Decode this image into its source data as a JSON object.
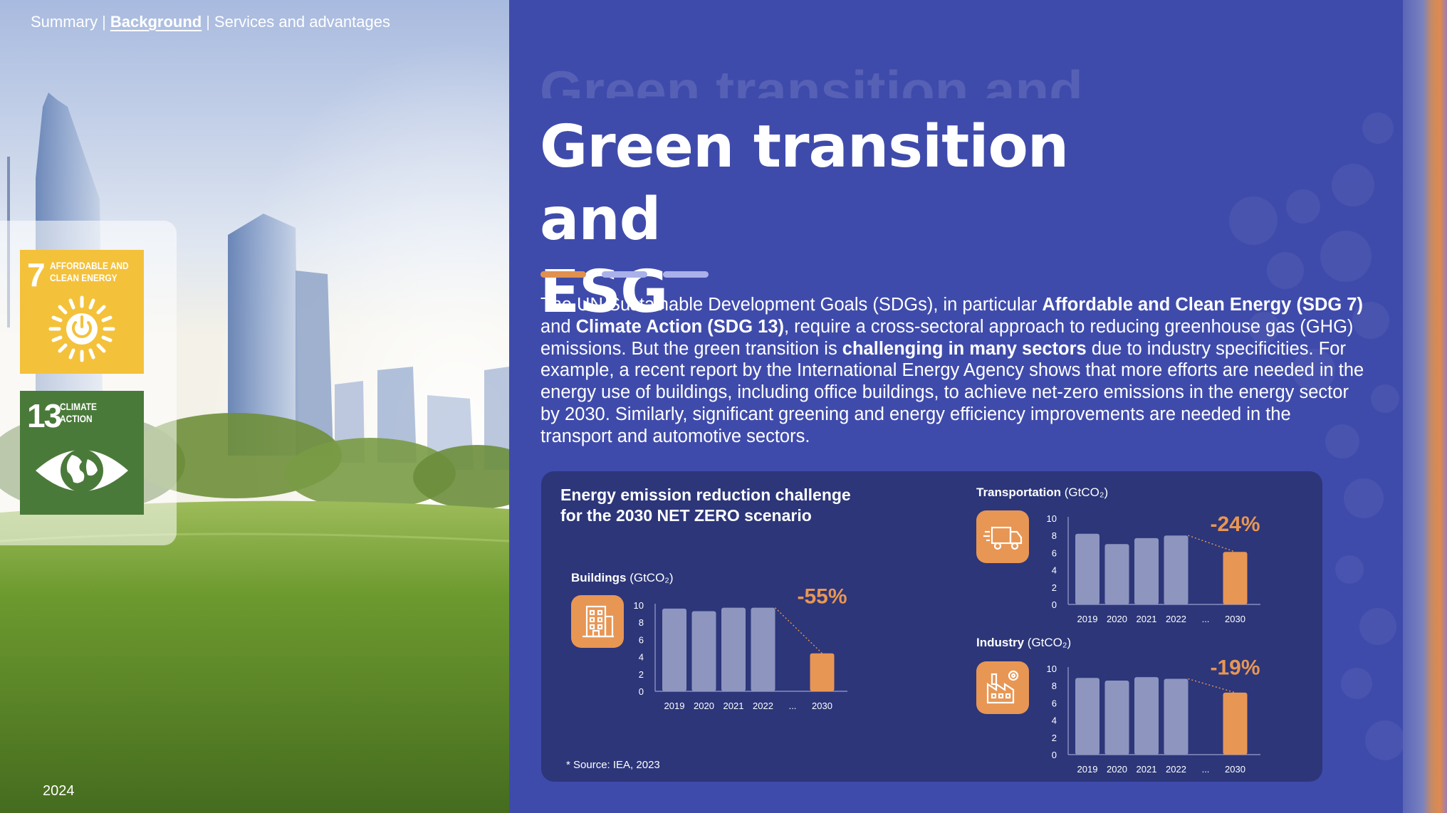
{
  "breadcrumb": {
    "items": [
      "Summary",
      "Background",
      "Services and advantages"
    ],
    "separator": "|",
    "active_index": 1
  },
  "year": "2024",
  "sdg_cards": [
    {
      "number": "7",
      "line1": "AFFORDABLE AND",
      "line2": "CLEAN ENERGY",
      "color": "#F4C13B",
      "icon": "power-sun-icon"
    },
    {
      "number": "13",
      "line1": "CLIMATE",
      "line2": "ACTION",
      "color": "#4A7A3A",
      "icon": "eye-globe-icon"
    }
  ],
  "title": {
    "ghost": "Green transition and",
    "line1": "Green transition and",
    "line2": "ESG"
  },
  "intro": {
    "p1": "The UN Sustainable Development Goals (SDGs), in particular ",
    "b1": "Affordable and Clean Energy (SDG 7)",
    "p2": " and ",
    "b2": "Climate Action (SDG 13)",
    "p3": ", require a cross-sectoral approach to reducing greenhouse gas (GHG) emissions. But the green transition is ",
    "b3": "challenging in many sectors",
    "p4": " due to industry specificities. For example, a recent report by the International Energy Agency shows that more efforts are needed in the energy use of buildings, including office buildings, to achieve net-zero emissions in the energy sector by 2030. Similarly, significant greening and energy efficiency improvements are needed in the transport and automotive sectors."
  },
  "panel": {
    "title": "Energy emission reduction challenge for the 2030 NET ZERO scenario",
    "source": "* Source: IEA, 2023"
  },
  "colors": {
    "bar": "#8E95BF",
    "bar_target": "#E89654",
    "accent": "#E89654",
    "background": "#3F4BAB",
    "panel": "#2C3679"
  },
  "chart_data": [
    {
      "type": "bar",
      "name_bold": "Buildings",
      "unit": "(GtCO₂)",
      "icon": "building-icon",
      "categories": [
        "2019",
        "2020",
        "2021",
        "2022",
        "...",
        "2030"
      ],
      "values": [
        9.6,
        9.3,
        9.7,
        9.7,
        null,
        4.4
      ],
      "ylim": [
        0,
        10
      ],
      "yticks": [
        "0",
        "2",
        "4",
        "6",
        "8",
        "10"
      ],
      "change": "-55%"
    },
    {
      "type": "bar",
      "name_bold": "Transportation",
      "unit": "(GtCO₂)",
      "icon": "truck-icon",
      "categories": [
        "2019",
        "2020",
        "2021",
        "2022",
        "...",
        "2030"
      ],
      "values": [
        8.2,
        7.0,
        7.7,
        8.0,
        null,
        6.1
      ],
      "ylim": [
        0,
        10
      ],
      "yticks": [
        "0",
        "2",
        "4",
        "6",
        "8",
        "10"
      ],
      "change": "-24%"
    },
    {
      "type": "bar",
      "name_bold": "Industry",
      "unit": "(GtCO₂)",
      "icon": "factory-icon",
      "categories": [
        "2019",
        "2020",
        "2021",
        "2022",
        "...",
        "2030"
      ],
      "values": [
        8.9,
        8.6,
        9.0,
        8.8,
        null,
        7.2
      ],
      "ylim": [
        0,
        10
      ],
      "yticks": [
        "0",
        "2",
        "4",
        "6",
        "8",
        "10"
      ],
      "change": "-19%"
    }
  ]
}
